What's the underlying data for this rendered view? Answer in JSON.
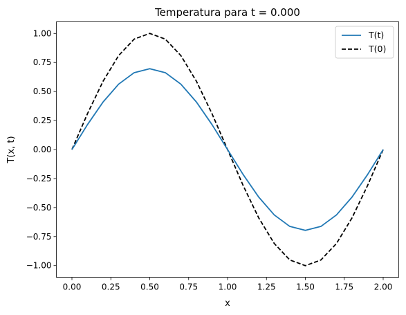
{
  "chart_data": {
    "type": "line",
    "title": "Temperatura para t = 0.000",
    "xlabel": "x",
    "ylabel": "T(x, t)",
    "xlim": [
      -0.1,
      2.1
    ],
    "ylim": [
      -1.1,
      1.1
    ],
    "xticks": [
      0.0,
      0.25,
      0.5,
      0.75,
      1.0,
      1.25,
      1.5,
      1.75,
      2.0
    ],
    "xtick_labels": [
      "0.00",
      "0.25",
      "0.50",
      "0.75",
      "1.00",
      "1.25",
      "1.50",
      "1.75",
      "2.00"
    ],
    "yticks": [
      -1.0,
      -0.75,
      -0.5,
      -0.25,
      0.0,
      0.25,
      0.5,
      0.75,
      1.0
    ],
    "ytick_labels": [
      "−1.00",
      "−0.75",
      "−0.50",
      "−0.25",
      "0.00",
      "0.25",
      "0.50",
      "0.75",
      "1.00"
    ],
    "grid": false,
    "legend_position": "top-right",
    "x": [
      0.0,
      0.1,
      0.2,
      0.3,
      0.4,
      0.5,
      0.6,
      0.7,
      0.8,
      0.9,
      1.0,
      1.1,
      1.2,
      1.3,
      1.4,
      1.5,
      1.6,
      1.7,
      1.8,
      1.9,
      2.0
    ],
    "series": [
      {
        "name": "T(t)",
        "color": "#1f77b4",
        "style": "solid",
        "values": [
          0.0,
          0.215,
          0.409,
          0.563,
          0.662,
          0.696,
          0.662,
          0.563,
          0.409,
          0.215,
          0.0,
          -0.215,
          -0.409,
          -0.563,
          -0.662,
          -0.696,
          -0.662,
          -0.563,
          -0.409,
          -0.215,
          0.0
        ]
      },
      {
        "name": "T(0)",
        "color": "#000000",
        "style": "dashed",
        "values": [
          0.0,
          0.309,
          0.588,
          0.809,
          0.951,
          1.0,
          0.951,
          0.809,
          0.588,
          0.309,
          0.0,
          -0.309,
          -0.588,
          -0.809,
          -0.951,
          -1.0,
          -0.951,
          -0.809,
          -0.588,
          -0.309,
          0.0
        ]
      }
    ]
  }
}
